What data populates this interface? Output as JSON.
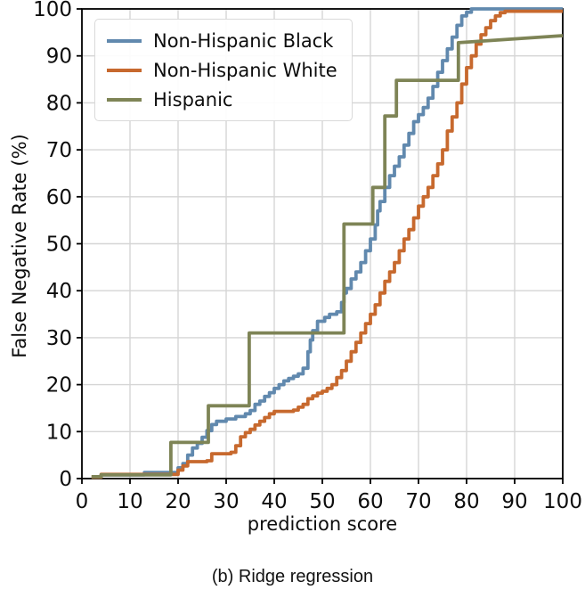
{
  "figure": {
    "caption": "(b) Ridge regression"
  },
  "chart_data": {
    "type": "line",
    "subtype": "step-ecdf",
    "title": "",
    "xlabel": "prediction score",
    "ylabel": "False Negative Rate (%)",
    "xlim": [
      0,
      100
    ],
    "ylim": [
      0,
      100
    ],
    "xticks": [
      0,
      10,
      20,
      30,
      40,
      50,
      60,
      70,
      80,
      90,
      100
    ],
    "yticks": [
      0,
      10,
      20,
      30,
      40,
      50,
      60,
      70,
      80,
      90,
      100
    ],
    "grid": true,
    "grid_color": "#d5d5d5",
    "background": "#ffffff",
    "legend_position": "upper-left",
    "series": [
      {
        "name": "Non-Hispanic Black",
        "color": "#6189ae",
        "mode": "step",
        "points": [
          [
            3,
            0.4
          ],
          [
            4,
            0.8
          ],
          [
            13,
            1.3
          ],
          [
            20,
            2.3
          ],
          [
            21,
            3.2
          ],
          [
            22,
            5
          ],
          [
            23,
            6.5
          ],
          [
            24,
            7.5
          ],
          [
            25,
            8.8
          ],
          [
            26,
            10.2
          ],
          [
            27,
            11.5
          ],
          [
            28,
            12.2
          ],
          [
            30,
            12.7
          ],
          [
            32,
            13.2
          ],
          [
            34,
            13.8
          ],
          [
            35,
            14.5
          ],
          [
            36,
            15.8
          ],
          [
            37,
            16.5
          ],
          [
            38,
            17.5
          ],
          [
            39,
            18.3
          ],
          [
            40,
            19.2
          ],
          [
            41,
            20
          ],
          [
            42,
            20.8
          ],
          [
            43,
            21.3
          ],
          [
            44,
            21.8
          ],
          [
            45,
            22.3
          ],
          [
            46,
            23.5
          ],
          [
            47,
            27
          ],
          [
            47.5,
            29.5
          ],
          [
            48,
            31.5
          ],
          [
            49,
            33.5
          ],
          [
            50.5,
            34.3
          ],
          [
            51.5,
            35
          ],
          [
            53,
            35.5
          ],
          [
            54,
            37.5
          ],
          [
            54.5,
            39.5
          ],
          [
            55,
            40.5
          ],
          [
            56,
            42.5
          ],
          [
            57,
            44
          ],
          [
            58,
            46
          ],
          [
            59,
            48.5
          ],
          [
            60,
            51
          ],
          [
            61,
            54
          ],
          [
            61.5,
            57
          ],
          [
            62,
            59
          ],
          [
            63,
            62
          ],
          [
            64,
            64.5
          ],
          [
            65,
            66.5
          ],
          [
            66,
            68.5
          ],
          [
            67,
            71
          ],
          [
            68,
            73.5
          ],
          [
            69,
            76
          ],
          [
            70,
            77.5
          ],
          [
            71,
            79
          ],
          [
            72,
            81
          ],
          [
            73,
            83.5
          ],
          [
            74,
            86.5
          ],
          [
            75,
            89
          ],
          [
            76,
            91.5
          ],
          [
            77,
            94
          ],
          [
            78,
            96.5
          ],
          [
            79,
            98.5
          ],
          [
            80,
            99.3
          ],
          [
            81,
            100
          ],
          [
            100,
            100
          ]
        ]
      },
      {
        "name": "Non-Hispanic White",
        "color": "#c7692e",
        "mode": "step",
        "points": [
          [
            2,
            0.3
          ],
          [
            4,
            0.9
          ],
          [
            20,
            1.8
          ],
          [
            21,
            2.7
          ],
          [
            22,
            3.6
          ],
          [
            26,
            3.8
          ],
          [
            27,
            5.3
          ],
          [
            31,
            5.6
          ],
          [
            32,
            7
          ],
          [
            33,
            8.9
          ],
          [
            34,
            9.8
          ],
          [
            35,
            10.5
          ],
          [
            36,
            11.4
          ],
          [
            37,
            12.2
          ],
          [
            38,
            13
          ],
          [
            39,
            13.8
          ],
          [
            40,
            14.3
          ],
          [
            44,
            14.6
          ],
          [
            45,
            15.2
          ],
          [
            46,
            15.8
          ],
          [
            47,
            17
          ],
          [
            48,
            17.6
          ],
          [
            49,
            18.2
          ],
          [
            50,
            18.6
          ],
          [
            51,
            19.2
          ],
          [
            52,
            20
          ],
          [
            53,
            21.5
          ],
          [
            54,
            23
          ],
          [
            55,
            25
          ],
          [
            56,
            27
          ],
          [
            57,
            29
          ],
          [
            58,
            31
          ],
          [
            59,
            33
          ],
          [
            60,
            35
          ],
          [
            61,
            37
          ],
          [
            62,
            39.5
          ],
          [
            63,
            42
          ],
          [
            64,
            44
          ],
          [
            65,
            46
          ],
          [
            66,
            48.5
          ],
          [
            67,
            51
          ],
          [
            68,
            53
          ],
          [
            69,
            55.5
          ],
          [
            70,
            58
          ],
          [
            71,
            60
          ],
          [
            72,
            62
          ],
          [
            73,
            64.5
          ],
          [
            74,
            67
          ],
          [
            75,
            70
          ],
          [
            76,
            74
          ],
          [
            77,
            77
          ],
          [
            78,
            80
          ],
          [
            79,
            84
          ],
          [
            80,
            87.5
          ],
          [
            81,
            90
          ],
          [
            82,
            92.5
          ],
          [
            83,
            94.5
          ],
          [
            84,
            96
          ],
          [
            85,
            97.5
          ],
          [
            86,
            98.5
          ],
          [
            87,
            99.2
          ],
          [
            88,
            99.5
          ],
          [
            100,
            99.5
          ]
        ]
      },
      {
        "name": "Hispanic",
        "color": "#7e8456",
        "mode": "linear",
        "points": [
          [
            2,
            0.4
          ],
          [
            4,
            0.4
          ],
          [
            4,
            0.8
          ],
          [
            18.5,
            0.8
          ],
          [
            18.5,
            7.7
          ],
          [
            26.3,
            7.7
          ],
          [
            26.3,
            15.5
          ],
          [
            34.8,
            15.5
          ],
          [
            34.8,
            31
          ],
          [
            54.5,
            31
          ],
          [
            54.5,
            54.2
          ],
          [
            60.5,
            54.2
          ],
          [
            60.5,
            62
          ],
          [
            63,
            62
          ],
          [
            63,
            77.2
          ],
          [
            65.4,
            77.2
          ],
          [
            65.4,
            84.8
          ],
          [
            78.3,
            84.8
          ],
          [
            78.3,
            92.8
          ],
          [
            100,
            94.3
          ]
        ]
      }
    ]
  }
}
